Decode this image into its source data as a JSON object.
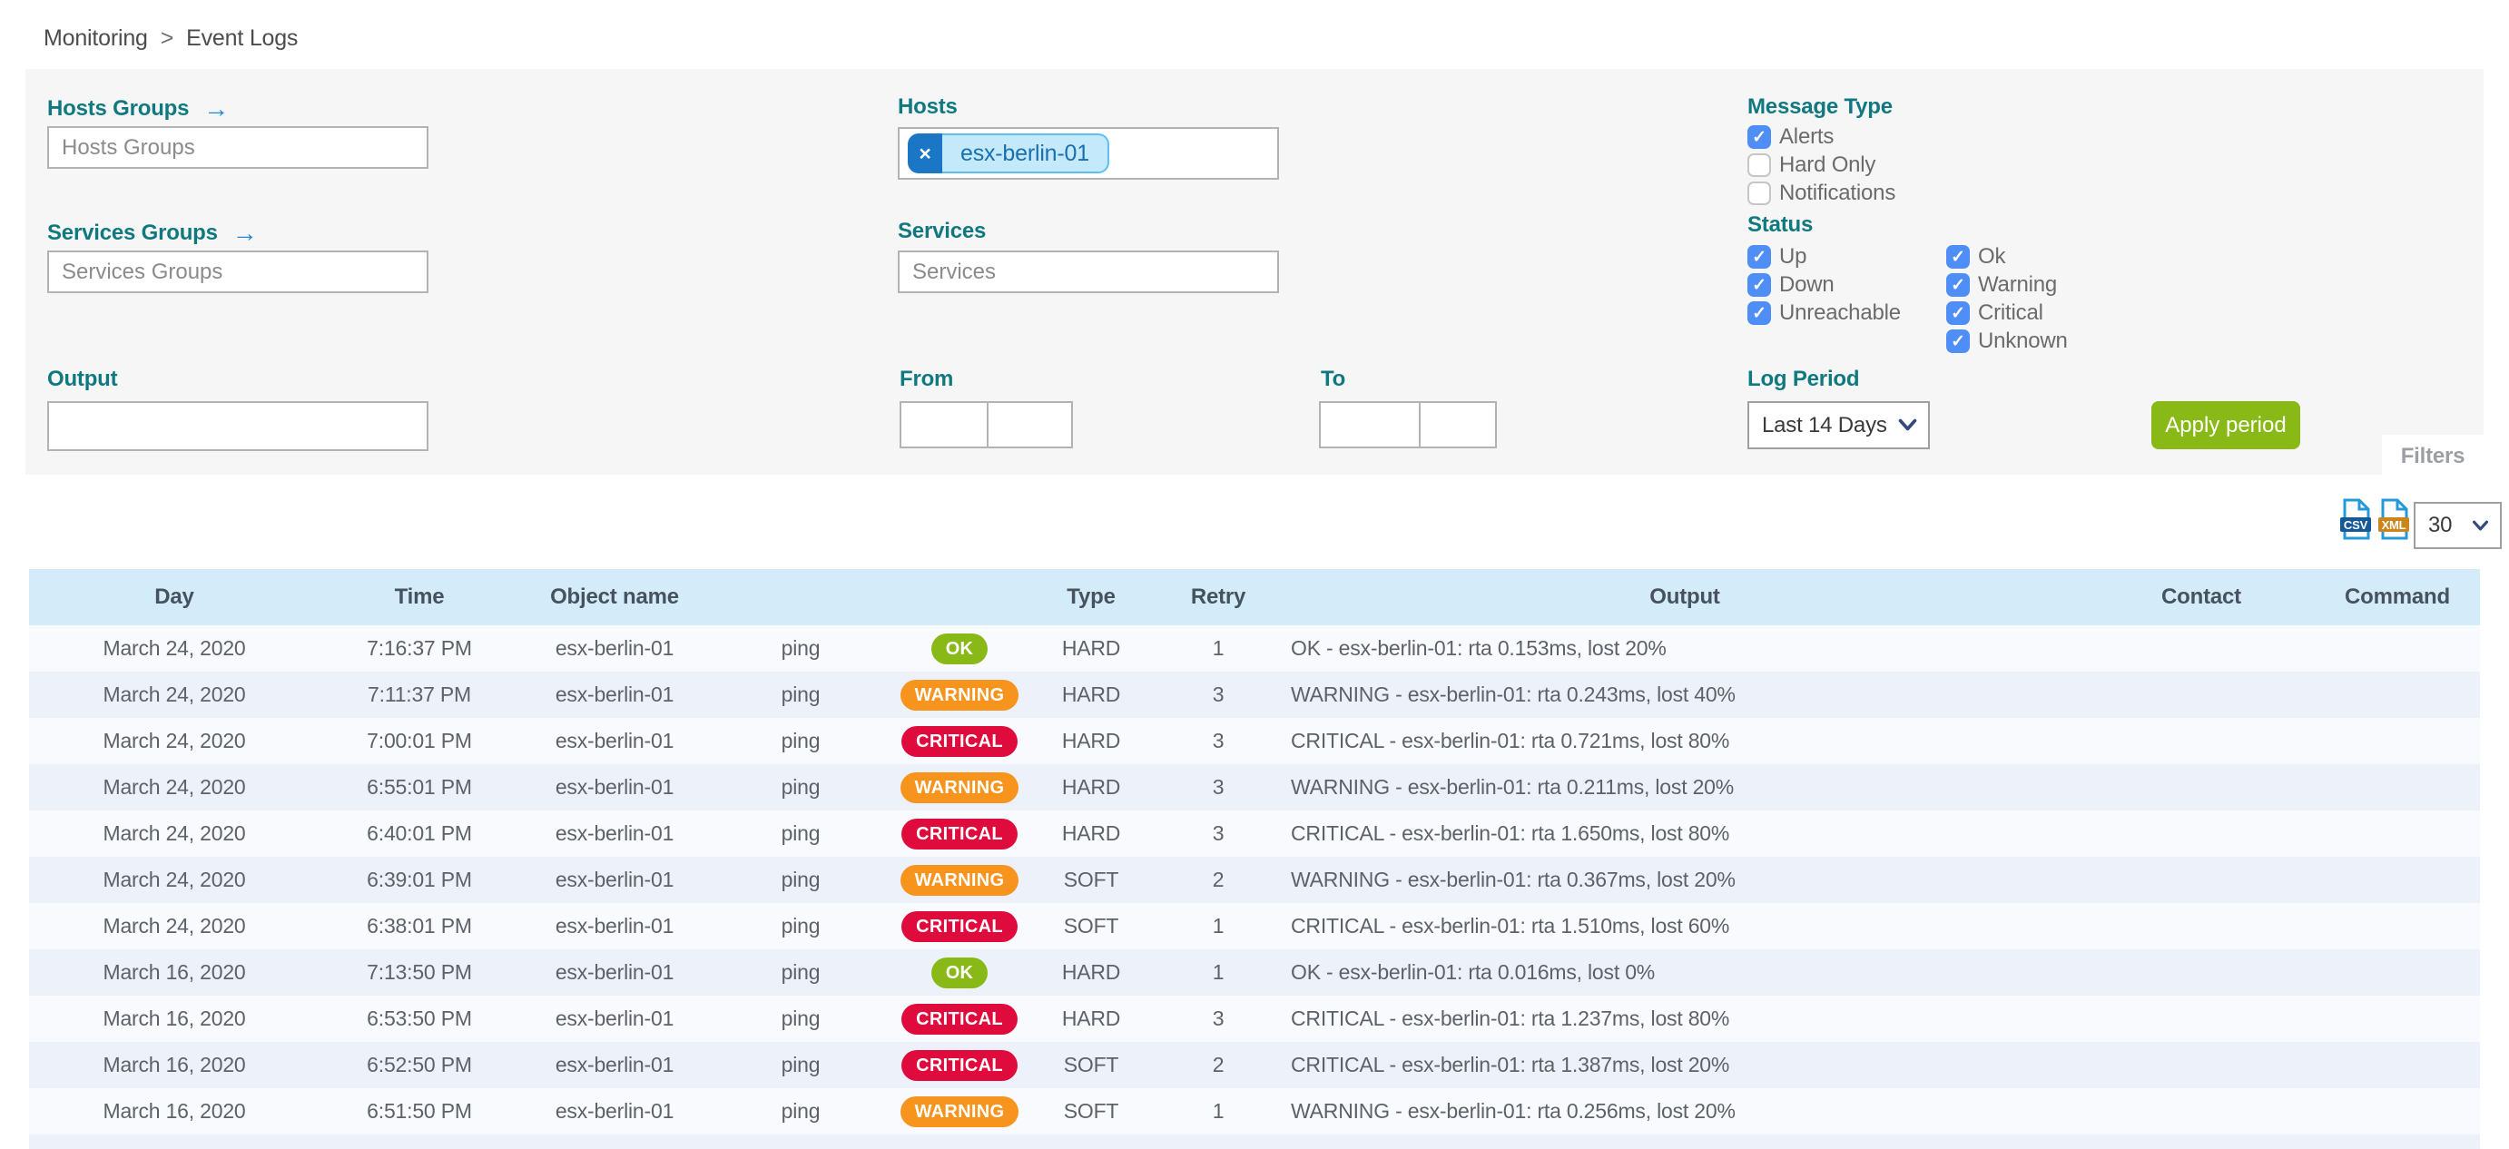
{
  "breadcrumb": {
    "section": "Monitoring",
    "separator": ">",
    "page": "Event Logs"
  },
  "filter_panel": {
    "hosts_groups_label": "Hosts Groups",
    "hosts_groups_placeholder": "Hosts Groups",
    "services_groups_label": "Services Groups",
    "services_groups_placeholder": "Services Groups",
    "hosts_label": "Hosts",
    "hosts_selected_chip": "esx-berlin-01",
    "chip_remove_glyph": "×",
    "arrow_glyph": "→",
    "services_label": "Services",
    "services_placeholder": "Services",
    "output_label": "Output",
    "output_value": "",
    "from_label": "From",
    "from_date_value": "",
    "from_time_value": "",
    "to_label": "To",
    "to_date_value": "",
    "to_time_value": "",
    "message_type_label": "Message Type",
    "message_type_options": [
      {
        "label": "Alerts",
        "checked": true
      },
      {
        "label": "Hard Only",
        "checked": false
      },
      {
        "label": "Notifications",
        "checked": false
      }
    ],
    "status_label": "Status",
    "status_options_col1": [
      {
        "label": "Up",
        "checked": true
      },
      {
        "label": "Down",
        "checked": true
      },
      {
        "label": "Unreachable",
        "checked": true
      }
    ],
    "status_options_col2": [
      {
        "label": "Ok",
        "checked": true
      },
      {
        "label": "Warning",
        "checked": true
      },
      {
        "label": "Critical",
        "checked": true
      },
      {
        "label": "Unknown",
        "checked": true
      }
    ],
    "log_period_label": "Log Period",
    "log_period_selected": "Last 14 Days",
    "apply_button_label": "Apply period",
    "filters_toggle_label": "Filters"
  },
  "export_bar": {
    "csv_icon_label": "CSV",
    "xml_icon_label": "XML",
    "rows_per_page": "30"
  },
  "table": {
    "headers": {
      "day": "Day",
      "time": "Time",
      "object": "Object name",
      "service": "",
      "status": "",
      "type": "Type",
      "retry": "Retry",
      "output": "Output",
      "contact": "Contact",
      "command": "Command"
    },
    "rows": [
      {
        "day": "March 24, 2020",
        "time": "7:16:37 PM",
        "object": "esx-berlin-01",
        "service": "ping",
        "status": "OK",
        "type": "HARD",
        "retry": "1",
        "output": "OK - esx-berlin-01: rta 0.153ms, lost 20%",
        "contact": "",
        "command": ""
      },
      {
        "day": "March 24, 2020",
        "time": "7:11:37 PM",
        "object": "esx-berlin-01",
        "service": "ping",
        "status": "WARNING",
        "type": "HARD",
        "retry": "3",
        "output": "WARNING - esx-berlin-01: rta 0.243ms, lost 40%",
        "contact": "",
        "command": ""
      },
      {
        "day": "March 24, 2020",
        "time": "7:00:01 PM",
        "object": "esx-berlin-01",
        "service": "ping",
        "status": "CRITICAL",
        "type": "HARD",
        "retry": "3",
        "output": "CRITICAL - esx-berlin-01: rta 0.721ms, lost 80%",
        "contact": "",
        "command": ""
      },
      {
        "day": "March 24, 2020",
        "time": "6:55:01 PM",
        "object": "esx-berlin-01",
        "service": "ping",
        "status": "WARNING",
        "type": "HARD",
        "retry": "3",
        "output": "WARNING - esx-berlin-01: rta 0.211ms, lost 20%",
        "contact": "",
        "command": ""
      },
      {
        "day": "March 24, 2020",
        "time": "6:40:01 PM",
        "object": "esx-berlin-01",
        "service": "ping",
        "status": "CRITICAL",
        "type": "HARD",
        "retry": "3",
        "output": "CRITICAL - esx-berlin-01: rta 1.650ms, lost 80%",
        "contact": "",
        "command": ""
      },
      {
        "day": "March 24, 2020",
        "time": "6:39:01 PM",
        "object": "esx-berlin-01",
        "service": "ping",
        "status": "WARNING",
        "type": "SOFT",
        "retry": "2",
        "output": "WARNING - esx-berlin-01: rta 0.367ms, lost 20%",
        "contact": "",
        "command": ""
      },
      {
        "day": "March 24, 2020",
        "time": "6:38:01 PM",
        "object": "esx-berlin-01",
        "service": "ping",
        "status": "CRITICAL",
        "type": "SOFT",
        "retry": "1",
        "output": "CRITICAL - esx-berlin-01: rta 1.510ms, lost 60%",
        "contact": "",
        "command": ""
      },
      {
        "day": "March 16, 2020",
        "time": "7:13:50 PM",
        "object": "esx-berlin-01",
        "service": "ping",
        "status": "OK",
        "type": "HARD",
        "retry": "1",
        "output": "OK - esx-berlin-01: rta 0.016ms, lost 0%",
        "contact": "",
        "command": ""
      },
      {
        "day": "March 16, 2020",
        "time": "6:53:50 PM",
        "object": "esx-berlin-01",
        "service": "ping",
        "status": "CRITICAL",
        "type": "HARD",
        "retry": "3",
        "output": "CRITICAL - esx-berlin-01: rta 1.237ms, lost 80%",
        "contact": "",
        "command": ""
      },
      {
        "day": "March 16, 2020",
        "time": "6:52:50 PM",
        "object": "esx-berlin-01",
        "service": "ping",
        "status": "CRITICAL",
        "type": "SOFT",
        "retry": "2",
        "output": "CRITICAL - esx-berlin-01: rta 1.387ms, lost 20%",
        "contact": "",
        "command": ""
      },
      {
        "day": "March 16, 2020",
        "time": "6:51:50 PM",
        "object": "esx-berlin-01",
        "service": "ping",
        "status": "WARNING",
        "type": "SOFT",
        "retry": "1",
        "output": "WARNING - esx-berlin-01: rta 0.256ms, lost 20%",
        "contact": "",
        "command": ""
      }
    ]
  },
  "colors": {
    "label_teal": "#107980",
    "arrow_blue": "#1e88d2",
    "checkbox_blue": "#4f8ef7",
    "apply_green": "#88b917",
    "chip_bg": "#c4e9fb",
    "chip_x_bg": "#1b77c5",
    "header_bg": "#d4ecf9",
    "row_alt_bg": "#edf1f9",
    "csv_band": "#155a97",
    "xml_band": "#c8861c",
    "doc_outline": "#2598d8",
    "status_badge": {
      "OK": "#88b917",
      "WARNING": "#f7941e",
      "CRITICAL": "#e00b3d"
    }
  }
}
